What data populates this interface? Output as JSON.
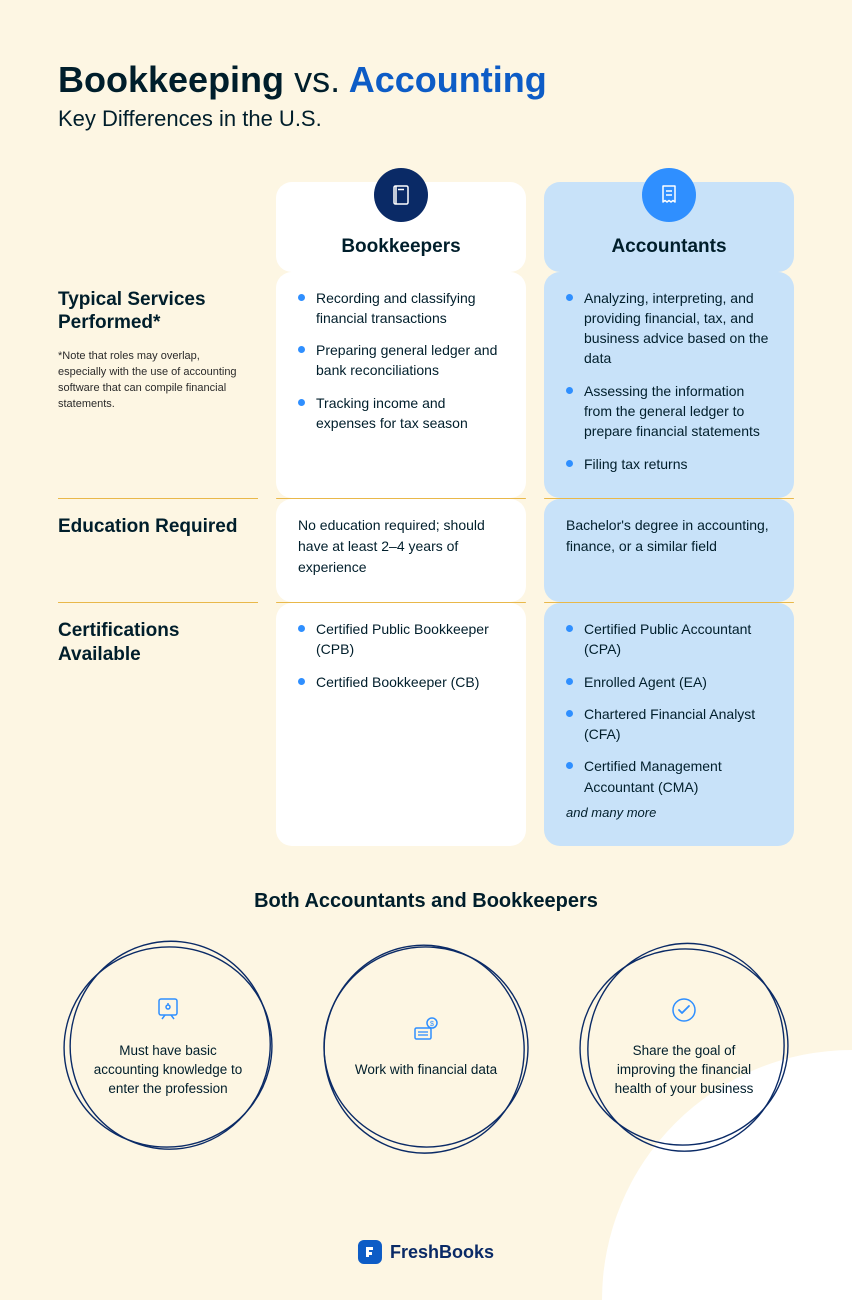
{
  "colors": {
    "page_bg": "#fdf6e3",
    "text": "#001e2b",
    "accent_blue": "#0d5cc6",
    "light_blue": "#c8e2f9",
    "badge_dark": "#0a2a66",
    "badge_blue": "#2f8fff",
    "bullet": "#2f8fff",
    "divider": "#e9b84a",
    "circle_stroke": "#0a2a66",
    "white": "#ffffff"
  },
  "header": {
    "word_bookkeeping": "Bookkeeping",
    "word_vs": "vs.",
    "word_accounting": "Accounting",
    "subtitle": "Key Differences in the U.S."
  },
  "columns": {
    "bookkeepers": {
      "title": "Bookkeepers",
      "icon": "book-icon"
    },
    "accountants": {
      "title": "Accountants",
      "icon": "receipt-icon"
    }
  },
  "rows": {
    "services": {
      "label": "Typical Services Performed*",
      "footnote": "*Note that roles may overlap, especially with the use of accounting software that can compile financial statements.",
      "bookkeepers": [
        "Recording and classifying financial transactions",
        "Preparing general ledger and bank reconciliations",
        "Tracking income and expenses for tax season"
      ],
      "accountants": [
        "Analyzing, interpreting, and providing financial, tax, and business advice based on the data",
        "Assessing the information from the general ledger to prepare financial statements",
        "Filing tax returns"
      ]
    },
    "education": {
      "label": "Education Required",
      "bookkeepers": "No education required; should have at least 2–4 years of experience",
      "accountants": "Bachelor's degree in accounting, finance, or a similar field"
    },
    "certs": {
      "label": "Certifications Available",
      "bookkeepers": [
        "Certified Public Bookkeeper (CPB)",
        "Certified Bookkeeper (CB)"
      ],
      "accountants": [
        "Certified Public Accountant (CPA)",
        "Enrolled Agent (EA)",
        "Chartered Financial Analyst (CFA)",
        "Certified Management Accountant (CMA)"
      ],
      "accountants_more": "and many more"
    }
  },
  "both": {
    "title": "Both Accountants and Bookkeepers",
    "items": [
      {
        "icon": "lightbulb-icon",
        "text": "Must have basic accounting knowledge to enter the profession"
      },
      {
        "icon": "finance-icon",
        "text": "Work with financial data"
      },
      {
        "icon": "check-icon",
        "text": "Share the goal of improving the financial health of your business"
      }
    ]
  },
  "brand": {
    "name": "FreshBooks"
  }
}
